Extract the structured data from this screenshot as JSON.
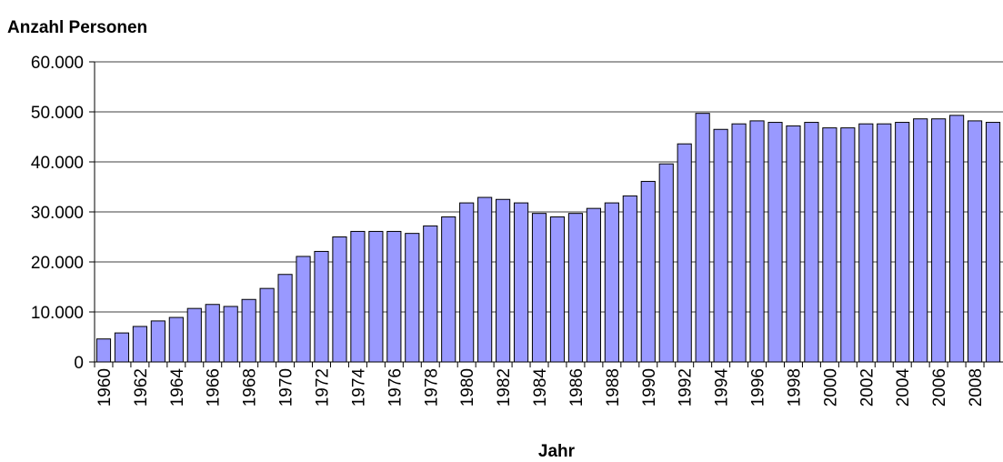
{
  "chart_data": {
    "type": "bar",
    "title": "Anzahl Personen",
    "x_label": "Jahr",
    "categories": [
      "1960",
      null,
      "1962",
      null,
      "1964",
      null,
      "1966",
      null,
      "1968",
      null,
      "1970",
      null,
      "1972",
      null,
      "1974",
      null,
      "1976",
      null,
      "1978",
      null,
      "1980",
      null,
      "1982",
      null,
      "1984",
      null,
      "1986",
      null,
      "1988",
      null,
      "1990",
      null,
      "1992",
      null,
      "1994",
      null,
      "1996",
      null,
      "1998",
      null,
      "2000",
      null,
      "2002",
      null,
      "2004",
      null,
      "2006",
      null,
      "2008",
      null
    ],
    "values": [
      4600,
      5800,
      7100,
      8200,
      8900,
      10700,
      11500,
      11100,
      12500,
      14700,
      17500,
      21100,
      22100,
      25000,
      26100,
      26100,
      26100,
      25700,
      27200,
      29000,
      31800,
      32900,
      32500,
      31800,
      29700,
      29000,
      29700,
      30700,
      31800,
      33200,
      36100,
      39600,
      43600,
      49700,
      46500,
      47600,
      48200,
      47900,
      47200,
      47900,
      46800,
      46800,
      47600,
      47600,
      47900,
      48600,
      48600,
      49300,
      48200,
      47900
    ],
    "color": "#9999ff",
    "ylim": [
      0,
      60000
    ],
    "yticks": [
      0,
      {
        "value": 10000,
        "label": "10.000"
      },
      {
        "value": 20000,
        "label": "20.000"
      },
      {
        "value": 30000,
        "label": "30.000"
      },
      {
        "value": 40000,
        "label": "40.000"
      },
      {
        "value": 50000,
        "label": "50.000"
      },
      {
        "value": 60000,
        "label": "60.000"
      }
    ],
    "grid": true
  }
}
